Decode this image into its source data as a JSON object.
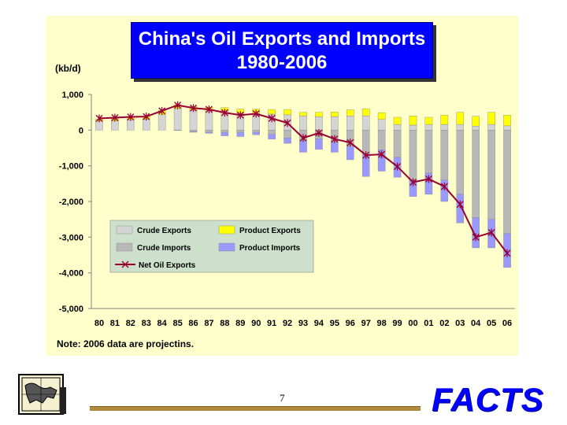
{
  "title_line1": "China's Oil Exports and Imports",
  "title_line2": "1980-2006",
  "unit_label": "(kb/d)",
  "note": "Note: 2006 data are projectins.",
  "page_number": "7",
  "logo_text": "FACTS",
  "colors": {
    "crude_exports": "#d4d4d4",
    "product_exports": "#ffff00",
    "crude_imports": "#b8b8b8",
    "product_imports": "#9999ff",
    "net_line": "#990033",
    "panel": "#ffffcc",
    "title_bg": "#0000ff",
    "logo": "#0000ff"
  },
  "chart_data": {
    "type": "bar",
    "stacked": true,
    "categories": [
      "80",
      "81",
      "82",
      "83",
      "84",
      "85",
      "86",
      "87",
      "88",
      "89",
      "90",
      "91",
      "92",
      "93",
      "94",
      "95",
      "96",
      "97",
      "98",
      "99",
      "00",
      "01",
      "02",
      "03",
      "04",
      "05",
      "06"
    ],
    "series": [
      {
        "name": "Crude Exports",
        "values": [
          260,
          260,
          290,
          300,
          430,
          600,
          560,
          540,
          520,
          470,
          470,
          450,
          430,
          400,
          380,
          380,
          400,
          400,
          300,
          160,
          140,
          160,
          160,
          160,
          110,
          160,
          120
        ]
      },
      {
        "name": "Product Exports",
        "values": [
          50,
          60,
          80,
          80,
          120,
          120,
          100,
          100,
          110,
          120,
          120,
          130,
          150,
          100,
          120,
          130,
          170,
          200,
          190,
          200,
          260,
          200,
          260,
          340,
          280,
          340,
          300
        ]
      },
      {
        "name": "Crude Imports",
        "values": [
          0,
          0,
          0,
          0,
          0,
          0,
          -40,
          -60,
          -60,
          -60,
          -60,
          -120,
          -220,
          -300,
          -240,
          -340,
          -450,
          -700,
          -550,
          -760,
          -1400,
          -1200,
          -1400,
          -1800,
          -2450,
          -2500,
          -2900
        ]
      },
      {
        "name": "Product Imports",
        "values": [
          0,
          0,
          0,
          0,
          0,
          -10,
          -20,
          -30,
          -100,
          -120,
          -70,
          -130,
          -150,
          -320,
          -300,
          -280,
          -380,
          -600,
          -600,
          -560,
          -460,
          -600,
          -600,
          -800,
          -850,
          -800,
          -950
        ]
      },
      {
        "name": "Net Oil Exports",
        "type": "line",
        "values": [
          330,
          350,
          370,
          380,
          540,
          700,
          620,
          580,
          490,
          420,
          460,
          330,
          200,
          -220,
          -80,
          -250,
          -350,
          -700,
          -680,
          -1020,
          -1460,
          -1370,
          -1580,
          -2080,
          -3000,
          -2870,
          -3450
        ]
      }
    ],
    "ylim": [
      -5000,
      1000
    ],
    "yticks": [
      "1,000",
      "0",
      "-1,000",
      "-2,000",
      "-3,000",
      "-4,000",
      "-5,000"
    ],
    "ytick_values": [
      1000,
      0,
      -1000,
      -2000,
      -3000,
      -4000,
      -5000
    ],
    "grid": false,
    "legend_position": "lower-left inside"
  }
}
